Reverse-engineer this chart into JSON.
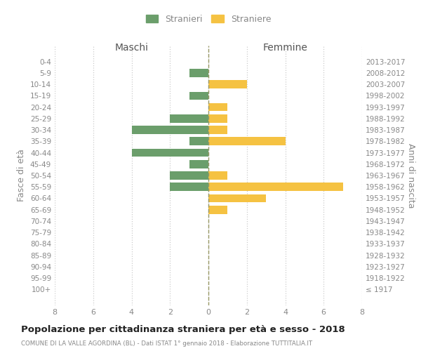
{
  "age_groups": [
    "0-4",
    "5-9",
    "10-14",
    "15-19",
    "20-24",
    "25-29",
    "30-34",
    "35-39",
    "40-44",
    "45-49",
    "50-54",
    "55-59",
    "60-64",
    "65-69",
    "70-74",
    "75-79",
    "80-84",
    "85-89",
    "90-94",
    "95-99",
    "100+"
  ],
  "birth_years": [
    "2013-2017",
    "2008-2012",
    "2003-2007",
    "1998-2002",
    "1993-1997",
    "1988-1992",
    "1983-1987",
    "1978-1982",
    "1973-1977",
    "1968-1972",
    "1963-1967",
    "1958-1962",
    "1953-1957",
    "1948-1952",
    "1943-1947",
    "1938-1942",
    "1933-1937",
    "1928-1932",
    "1923-1927",
    "1918-1922",
    "≤ 1917"
  ],
  "males": [
    0,
    1,
    0,
    1,
    0,
    2,
    4,
    1,
    4,
    1,
    2,
    2,
    0,
    0,
    0,
    0,
    0,
    0,
    0,
    0,
    0
  ],
  "females": [
    0,
    0,
    2,
    0,
    1,
    1,
    1,
    4,
    0,
    0,
    1,
    7,
    3,
    1,
    0,
    0,
    0,
    0,
    0,
    0,
    0
  ],
  "male_color": "#6b9e6b",
  "female_color": "#f5c242",
  "male_label": "Stranieri",
  "female_label": "Straniere",
  "title": "Popolazione per cittadinanza straniera per età e sesso - 2018",
  "subtitle": "COMUNE DI LA VALLE AGORDINA (BL) - Dati ISTAT 1° gennaio 2018 - Elaborazione TUTTITALIA.IT",
  "header_left": "Maschi",
  "header_right": "Femmine",
  "ylabel_left": "Fasce di età",
  "ylabel_right": "Anni di nascita",
  "xlim": 8,
  "background_color": "#ffffff",
  "grid_color": "#cccccc",
  "text_color": "#888888",
  "header_color": "#555555",
  "title_color": "#222222",
  "centerline_color": "#999966"
}
